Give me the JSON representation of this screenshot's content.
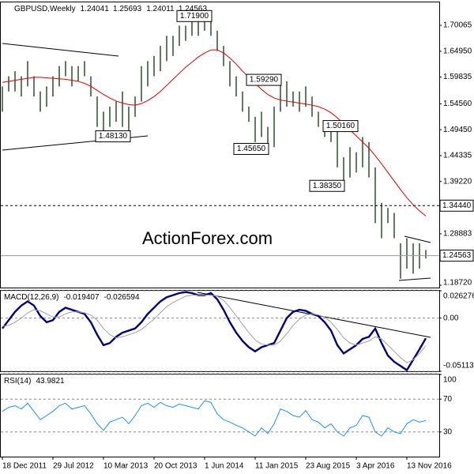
{
  "chart_data": [
    {
      "type": "ohlc",
      "title": "GBPUSD,Weekly",
      "last": {
        "open": 1.24041,
        "high": 1.25693,
        "low": 1.24011,
        "close": 1.24563
      },
      "watermark": "ActionForex.com",
      "bar_color": "#3a5a3a",
      "ma_color": "#e00000",
      "high": [
        1.58,
        1.6,
        1.61,
        1.6,
        1.63,
        1.6,
        1.57,
        1.58,
        1.6,
        1.62,
        1.63,
        1.62,
        1.62,
        1.63,
        1.6,
        1.56,
        1.53,
        1.54,
        1.55,
        1.57,
        1.54,
        1.56,
        1.62,
        1.63,
        1.64,
        1.66,
        1.68,
        1.68,
        1.7,
        1.7,
        1.71,
        1.71,
        1.715,
        1.719,
        1.69,
        1.66,
        1.63,
        1.6,
        1.57,
        1.54,
        1.52,
        1.53,
        1.5,
        1.54,
        1.5929,
        1.59,
        1.57,
        1.57,
        1.58,
        1.56,
        1.53,
        1.5,
        1.5016,
        1.49,
        1.44,
        1.46,
        1.45,
        1.48,
        1.47,
        1.42,
        1.35,
        1.34,
        1.33,
        1.27,
        1.28,
        1.27,
        1.27,
        1.25693
      ],
      "low": [
        1.53,
        1.57,
        1.57,
        1.56,
        1.58,
        1.56,
        1.53,
        1.54,
        1.56,
        1.58,
        1.6,
        1.58,
        1.59,
        1.6,
        1.56,
        1.5,
        1.4813,
        1.5,
        1.51,
        1.5,
        1.49,
        1.52,
        1.55,
        1.58,
        1.6,
        1.61,
        1.63,
        1.64,
        1.66,
        1.67,
        1.68,
        1.68,
        1.69,
        1.68,
        1.65,
        1.62,
        1.58,
        1.56,
        1.53,
        1.51,
        1.47,
        1.48,
        1.4565,
        1.46,
        1.53,
        1.54,
        1.54,
        1.53,
        1.54,
        1.52,
        1.5,
        1.48,
        1.47,
        1.42,
        1.3835,
        1.4,
        1.41,
        1.42,
        1.4,
        1.31,
        1.28,
        1.31,
        1.28,
        1.2,
        1.22,
        1.21,
        1.22,
        1.24011
      ],
      "ma_values": [
        1.588,
        1.59,
        1.592,
        1.594,
        1.596,
        1.598,
        1.598,
        1.597,
        1.596,
        1.595,
        1.594,
        1.592,
        1.59,
        1.586,
        1.58,
        1.572,
        1.564,
        1.557,
        1.551,
        1.547,
        1.544,
        1.543,
        1.546,
        1.552,
        1.56,
        1.57,
        1.582,
        1.594,
        1.606,
        1.618,
        1.628,
        1.638,
        1.646,
        1.652,
        1.652,
        1.646,
        1.636,
        1.624,
        1.61,
        1.598,
        1.586,
        1.574,
        1.564,
        1.557,
        1.553,
        1.551,
        1.549,
        1.547,
        1.545,
        1.543,
        1.54,
        1.535,
        1.528,
        1.518,
        1.506,
        1.494,
        1.482,
        1.47,
        1.458,
        1.443,
        1.427,
        1.41,
        1.393,
        1.376,
        1.36,
        1.346,
        1.334,
        1.324
      ],
      "ylim": [
        1.181,
        1.746
      ],
      "yticks": [
        {
          "value": 1.70065,
          "label": "1.70065"
        },
        {
          "value": 1.6495,
          "label": "1.64950"
        },
        {
          "value": 1.59835,
          "label": "1.59835"
        },
        {
          "value": 1.5456,
          "label": "1.54560"
        },
        {
          "value": 1.4945,
          "label": "1.49450"
        },
        {
          "value": 1.44335,
          "label": "1.44335"
        },
        {
          "value": 1.3922,
          "label": "1.39220"
        },
        {
          "value": 1.28883,
          "label": "1.28883"
        },
        {
          "value": 1.1872,
          "label": "1.18720"
        }
      ],
      "hlines": [
        {
          "value": 1.3444,
          "label": "1.34440",
          "style": "dashed"
        },
        {
          "value": 1.24563,
          "label": "1.24563",
          "style": "solid"
        }
      ],
      "annotations": [
        {
          "label": "1.71900",
          "value": 1.719,
          "index": 33,
          "side": "left"
        },
        {
          "label": "1.59290",
          "value": 1.5929,
          "index": 44,
          "side": "left"
        },
        {
          "label": "1.48130",
          "value": 1.4813,
          "index": 16,
          "side": "right"
        },
        {
          "label": "1.45650",
          "value": 1.4565,
          "index": 42,
          "side": "left"
        },
        {
          "label": "1.50160",
          "value": 1.5016,
          "index": 52,
          "side": "right"
        },
        {
          "label": "1.38350",
          "value": 1.3835,
          "index": 54,
          "side": "left"
        }
      ]
    },
    {
      "type": "macd",
      "title": "MACD(12,26,9)",
      "grid": "dashed",
      "series": [
        {
          "color": "#000080",
          "values": [
            -0.01,
            -0.002,
            0.006,
            0.012,
            0.016,
            0.012,
            0.002,
            -0.004,
            -0.002,
            0.006,
            0.01,
            0.008,
            0.006,
            0.004,
            -0.004,
            -0.016,
            -0.026,
            -0.024,
            -0.018,
            -0.014,
            -0.012,
            -0.01,
            -0.004,
            0.004,
            0.01,
            0.016,
            0.02,
            0.022,
            0.024,
            0.025,
            0.024,
            0.022,
            0.022,
            0.024,
            0.018,
            0.008,
            -0.004,
            -0.014,
            -0.022,
            -0.028,
            -0.032,
            -0.028,
            -0.026,
            -0.024,
            -0.012,
            0,
            0.006,
            0.008,
            0.007,
            0.004,
            0.002,
            -0.004,
            -0.012,
            -0.026,
            -0.034,
            -0.03,
            -0.026,
            -0.02,
            -0.018,
            -0.01,
            -0.024,
            -0.036,
            -0.042,
            -0.046,
            -0.05,
            -0.04,
            -0.03,
            -0.019407
          ]
        },
        {
          "color": "#a0a0a0",
          "values": [
            -0.008,
            -0.007,
            -0.004,
            0,
            0.005,
            0.008,
            0.007,
            0.004,
            0.001,
            0.001,
            0.004,
            0.006,
            0.006,
            0.005,
            0.003,
            -0.002,
            -0.01,
            -0.016,
            -0.019,
            -0.018,
            -0.016,
            -0.014,
            -0.011,
            -0.006,
            -0.001,
            0.005,
            0.011,
            0.015,
            0.018,
            0.021,
            0.022,
            0.022,
            0.022,
            0.022,
            0.021,
            0.017,
            0.01,
            0.002,
            -0.006,
            -0.014,
            -0.021,
            -0.025,
            -0.026,
            -0.026,
            -0.022,
            -0.015,
            -0.007,
            -0.001,
            0.003,
            0.004,
            0.003,
            0.001,
            -0.004,
            -0.011,
            -0.019,
            -0.024,
            -0.026,
            -0.024,
            -0.022,
            -0.018,
            -0.02,
            -0.026,
            -0.032,
            -0.038,
            -0.043,
            -0.04,
            -0.034,
            -0.026594
          ]
        }
      ],
      "ylim": [
        -0.051137,
        0.026276
      ],
      "yticks": [
        0.026276,
        {
          "value": 0,
          "label": "0.00"
        },
        -0.051137
      ]
    },
    {
      "type": "rsi",
      "title": "RSI(14)",
      "grid": "dashed",
      "series": [
        {
          "color": "#1e90ff",
          "values": [
            55,
            60,
            62,
            58,
            65,
            55,
            45,
            50,
            55,
            62,
            65,
            58,
            60,
            62,
            52,
            40,
            32,
            42,
            45,
            48,
            40,
            50,
            62,
            65,
            60,
            66,
            62,
            60,
            64,
            62,
            60,
            58,
            68,
            66,
            52,
            45,
            42,
            38,
            35,
            30,
            25,
            35,
            28,
            40,
            58,
            55,
            50,
            48,
            56,
            45,
            42,
            35,
            40,
            30,
            25,
            35,
            38,
            50,
            48,
            30,
            25,
            35,
            30,
            28,
            40,
            45,
            42,
            43.9821
          ]
        }
      ],
      "ylim": [
        0,
        100
      ],
      "yticks": [
        100,
        70,
        30
      ],
      "categories": [
        "18 Dec 2011",
        null,
        null,
        null,
        null,
        null,
        null,
        null,
        "29 Jul 2012",
        null,
        null,
        null,
        null,
        null,
        null,
        null,
        "10 Mar 2013",
        null,
        null,
        null,
        null,
        null,
        null,
        null,
        "20 Oct 2013",
        null,
        null,
        null,
        null,
        null,
        null,
        null,
        "1 Jun 2014",
        null,
        null,
        null,
        null,
        null,
        null,
        null,
        "11 Jan 2015",
        null,
        null,
        null,
        null,
        null,
        null,
        null,
        "23 Aug 2015",
        null,
        null,
        null,
        null,
        null,
        null,
        null,
        "3 Apr 2016",
        null,
        null,
        null,
        null,
        null,
        null,
        null,
        "13 Nov 2016",
        null,
        null,
        null
      ]
    }
  ]
}
